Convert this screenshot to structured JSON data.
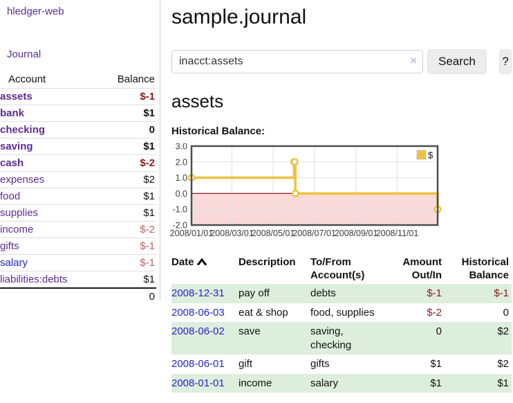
{
  "sidebar": {
    "brand": "hledger-web",
    "nav_journal": "Journal",
    "accounts_table": {
      "col_account": "Account",
      "col_balance": "Balance",
      "rows": [
        {
          "name": "assets",
          "balance": "$-1",
          "depth": 1,
          "bold": true,
          "neg": "strong",
          "link": "purple"
        },
        {
          "name": "bank",
          "balance": "$1",
          "depth": 2,
          "bold": true,
          "neg": "none",
          "link": "purple"
        },
        {
          "name": "checking",
          "balance": "0",
          "depth": 3,
          "bold": true,
          "neg": "none",
          "link": "purple"
        },
        {
          "name": "saving",
          "balance": "$1",
          "depth": 3,
          "bold": true,
          "neg": "none",
          "link": "purple"
        },
        {
          "name": "cash",
          "balance": "$-2",
          "depth": 2,
          "bold": true,
          "neg": "strong",
          "link": "purple"
        },
        {
          "name": "expenses",
          "balance": "$2",
          "depth": 1,
          "bold": false,
          "neg": "none",
          "link": "purple"
        },
        {
          "name": "food",
          "balance": "$1",
          "depth": 2,
          "bold": false,
          "neg": "none",
          "link": "purple"
        },
        {
          "name": "supplies",
          "balance": "$1",
          "depth": 2,
          "bold": false,
          "neg": "none",
          "link": "purple"
        },
        {
          "name": "income",
          "balance": "$-2",
          "depth": 1,
          "bold": false,
          "neg": "soft",
          "link": "purple"
        },
        {
          "name": "gifts",
          "balance": "$-1",
          "depth": 2,
          "bold": false,
          "neg": "soft",
          "link": "purple"
        },
        {
          "name": "salary",
          "balance": "$-1",
          "depth": 2,
          "bold": false,
          "neg": "soft",
          "link": "blue"
        },
        {
          "name": "liabilities:debts",
          "balance": "$1",
          "depth": 1,
          "bold": false,
          "neg": "none",
          "link": "purple"
        }
      ],
      "total": "0"
    }
  },
  "main": {
    "title": "sample.journal",
    "search": {
      "value": "inacct:assets",
      "clear_icon": "×",
      "search_button": "Search",
      "help_button": "?"
    },
    "account_heading": "assets",
    "chart_heading": "Historical Balance:"
  },
  "chart_data": {
    "type": "line",
    "title": "Historical Balance:",
    "step": true,
    "series": [
      {
        "name": "$",
        "color": "#edc240",
        "points": [
          [
            "2008-01-01",
            1
          ],
          [
            "2008-06-01",
            2
          ],
          [
            "2008-06-02",
            2
          ],
          [
            "2008-06-03",
            0
          ],
          [
            "2008-12-31",
            -1
          ]
        ]
      }
    ],
    "xlim": [
      "2008-01-01",
      "2008-12-31"
    ],
    "ylim": [
      -2,
      3
    ],
    "xticks": [
      "2008/01/01",
      "2008/03/01",
      "2008/05/01",
      "2008/07/01",
      "2008/09/01",
      "2008/11/01"
    ],
    "yticks": [
      3.0,
      2.0,
      1.0,
      0.0,
      -1.0,
      -2.0
    ],
    "grid": true,
    "legend_position": "top-right",
    "negative_region_color": "#f9dada",
    "zero_line_color": "#8b1a1a",
    "grid_color": "#e2e2e2",
    "border_color": "#4d4d4d",
    "tick_label_color": "#3c3c3c"
  },
  "register": {
    "columns": {
      "date": "Date",
      "description": "Description",
      "accounts": "To/From Account(s)",
      "amount": "Amount Out/In",
      "balance": "Historical Balance"
    },
    "rows": [
      {
        "date": "2008-12-31",
        "description": "pay off",
        "accounts": "debts",
        "amount": "$-1",
        "balance": "$-1",
        "amount_neg": true,
        "balance_neg": true
      },
      {
        "date": "2008-06-03",
        "description": "eat & shop",
        "accounts": "food, supplies",
        "amount": "$-2",
        "balance": "0",
        "amount_neg": true,
        "balance_neg": false
      },
      {
        "date": "2008-06-02",
        "description": "save",
        "accounts": "saving, checking",
        "amount": "0",
        "balance": "$2",
        "amount_neg": false,
        "balance_neg": false
      },
      {
        "date": "2008-06-01",
        "description": "gift",
        "accounts": "gifts",
        "amount": "$1",
        "balance": "$2",
        "amount_neg": false,
        "balance_neg": false
      },
      {
        "date": "2008-01-01",
        "description": "income",
        "accounts": "salary",
        "amount": "$1",
        "balance": "$1",
        "amount_neg": false,
        "balance_neg": false
      }
    ]
  },
  "colors": {
    "link_purple": "#5c2d91",
    "link_blue": "#2525cc",
    "negative_strong": "#8b1a1a",
    "negative_soft": "#c06060",
    "row_green": "#ddeedd",
    "chart_line": "#edc240"
  }
}
